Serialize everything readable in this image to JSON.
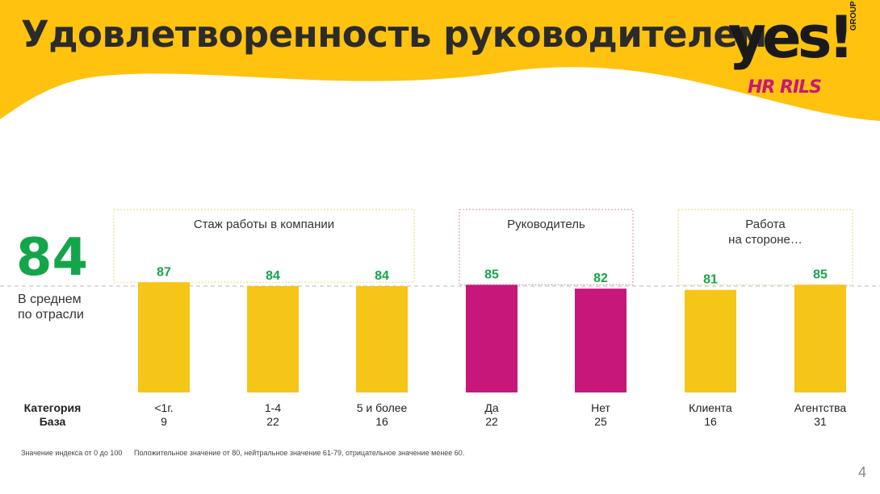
{
  "header": {
    "title": "Удовлетворенность руководителем"
  },
  "logo": {
    "main": "yes!",
    "sub": "GROUP",
    "brand": "HR RILS"
  },
  "average": {
    "value": "84",
    "label_line1": "В среднем",
    "label_line2": "по отрасли"
  },
  "row_labels": {
    "category": "Категория",
    "base": "База"
  },
  "colors": {
    "yellow": "#f5c518",
    "magenta": "#c7177a",
    "green": "#14a54a",
    "banner": "#ffc20e"
  },
  "chart_data": {
    "type": "bar",
    "reference_value": 84,
    "groups": [
      {
        "label": "Стаж работы в компании",
        "border_color": "#e8d77a",
        "bars": [
          0,
          1,
          2
        ]
      },
      {
        "label": "Руководитель",
        "border_color": "#c98fb8",
        "bars": [
          3,
          4
        ]
      },
      {
        "label": "Работа на стороне…",
        "border_color": "#e8d77a",
        "bars": [
          5,
          6
        ]
      }
    ],
    "categories": [
      "<1г.",
      "1-4",
      "5 и более",
      "Да",
      "Нет",
      "Клиента",
      "Агентства"
    ],
    "base": [
      "9",
      "22",
      "16",
      "22",
      "25",
      "16",
      "31"
    ],
    "values": [
      87,
      84,
      84,
      85,
      82,
      81,
      85
    ],
    "bar_colors": [
      "#f5c518",
      "#f5c518",
      "#f5c518",
      "#c7177a",
      "#c7177a",
      "#f5c518",
      "#f5c518"
    ]
  },
  "footnote": {
    "scale": "Значение индекса от 0 до 100",
    "legend": "Положительное значение от 80, нейтральное значение 61-79, отрицательное значение менее 60."
  },
  "page_number": "4"
}
